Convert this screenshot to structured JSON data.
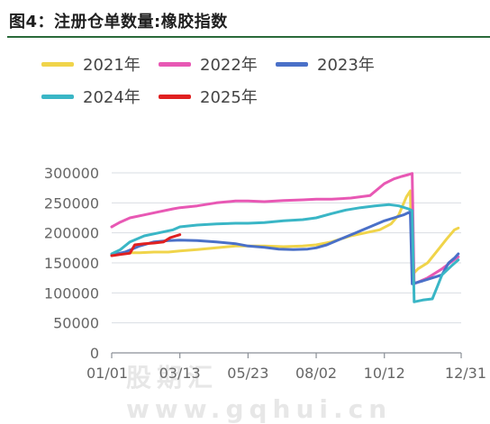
{
  "header": {
    "title": "图4：注册仓单数量:橡胶指数"
  },
  "watermark": "股期汇 www.gqhui.cn",
  "chart_data": {
    "type": "line",
    "title": "图4：注册仓单数量:橡胶指数",
    "xlabel": "",
    "ylabel": "",
    "x_ticks": [
      "01/01",
      "03/13",
      "05/23",
      "08/02",
      "10/12",
      "12/31"
    ],
    "x_tick_days": [
      1,
      72,
      143,
      214,
      285,
      365
    ],
    "y_ticks": [
      0,
      50000,
      100000,
      150000,
      200000,
      250000,
      300000
    ],
    "ylim": [
      0,
      300000
    ],
    "xlim": [
      1,
      365
    ],
    "grid": true,
    "legend_position": "top",
    "series": [
      {
        "name": "2021年",
        "color": "#f0d44a",
        "points": [
          [
            1,
            163000
          ],
          [
            10,
            165000
          ],
          [
            20,
            167000
          ],
          [
            30,
            167000
          ],
          [
            45,
            168000
          ],
          [
            60,
            168000
          ],
          [
            72,
            170000
          ],
          [
            90,
            172000
          ],
          [
            110,
            175000
          ],
          [
            130,
            178000
          ],
          [
            143,
            178000
          ],
          [
            160,
            178000
          ],
          [
            180,
            177000
          ],
          [
            200,
            178000
          ],
          [
            214,
            180000
          ],
          [
            230,
            185000
          ],
          [
            250,
            195000
          ],
          [
            265,
            200000
          ],
          [
            280,
            205000
          ],
          [
            292,
            215000
          ],
          [
            300,
            230000
          ],
          [
            308,
            260000
          ],
          [
            312,
            270000
          ],
          [
            314,
            130000
          ],
          [
            320,
            140000
          ],
          [
            330,
            150000
          ],
          [
            340,
            170000
          ],
          [
            350,
            190000
          ],
          [
            358,
            205000
          ],
          [
            362,
            208000
          ]
        ]
      },
      {
        "name": "2022年",
        "color": "#e858b4",
        "points": [
          [
            1,
            210000
          ],
          [
            10,
            218000
          ],
          [
            20,
            225000
          ],
          [
            35,
            230000
          ],
          [
            50,
            235000
          ],
          [
            65,
            240000
          ],
          [
            72,
            242000
          ],
          [
            90,
            245000
          ],
          [
            110,
            250000
          ],
          [
            130,
            253000
          ],
          [
            143,
            253000
          ],
          [
            160,
            252000
          ],
          [
            180,
            254000
          ],
          [
            200,
            255000
          ],
          [
            214,
            256000
          ],
          [
            230,
            256000
          ],
          [
            250,
            258000
          ],
          [
            270,
            262000
          ],
          [
            285,
            282000
          ],
          [
            295,
            290000
          ],
          [
            303,
            294000
          ],
          [
            310,
            297000
          ],
          [
            314,
            299000
          ],
          [
            316,
            115000
          ],
          [
            330,
            125000
          ],
          [
            345,
            140000
          ],
          [
            355,
            152000
          ],
          [
            362,
            160000
          ]
        ]
      },
      {
        "name": "2023年",
        "color": "#4a70c8",
        "points": [
          [
            1,
            163000
          ],
          [
            15,
            168000
          ],
          [
            30,
            178000
          ],
          [
            45,
            185000
          ],
          [
            60,
            187000
          ],
          [
            72,
            188000
          ],
          [
            90,
            187000
          ],
          [
            110,
            185000
          ],
          [
            130,
            182000
          ],
          [
            143,
            178000
          ],
          [
            160,
            176000
          ],
          [
            175,
            173000
          ],
          [
            190,
            172000
          ],
          [
            205,
            173000
          ],
          [
            214,
            175000
          ],
          [
            225,
            180000
          ],
          [
            240,
            190000
          ],
          [
            255,
            200000
          ],
          [
            270,
            210000
          ],
          [
            285,
            220000
          ],
          [
            295,
            225000
          ],
          [
            305,
            230000
          ],
          [
            312,
            235000
          ],
          [
            314,
            115000
          ],
          [
            325,
            120000
          ],
          [
            335,
            125000
          ],
          [
            345,
            130000
          ],
          [
            352,
            150000
          ],
          [
            358,
            158000
          ],
          [
            362,
            165000
          ]
        ]
      },
      {
        "name": "2024年",
        "color": "#3ab6c6",
        "points": [
          [
            1,
            165000
          ],
          [
            10,
            172000
          ],
          [
            20,
            185000
          ],
          [
            35,
            195000
          ],
          [
            50,
            200000
          ],
          [
            65,
            205000
          ],
          [
            72,
            210000
          ],
          [
            90,
            213000
          ],
          [
            110,
            215000
          ],
          [
            130,
            216000
          ],
          [
            143,
            216000
          ],
          [
            160,
            217000
          ],
          [
            180,
            220000
          ],
          [
            200,
            222000
          ],
          [
            214,
            225000
          ],
          [
            230,
            232000
          ],
          [
            245,
            238000
          ],
          [
            260,
            242000
          ],
          [
            275,
            245000
          ],
          [
            290,
            247000
          ],
          [
            300,
            245000
          ],
          [
            310,
            240000
          ],
          [
            314,
            237000
          ],
          [
            316,
            85000
          ],
          [
            325,
            88000
          ],
          [
            335,
            90000
          ],
          [
            340,
            110000
          ],
          [
            345,
            130000
          ],
          [
            355,
            145000
          ],
          [
            362,
            155000
          ]
        ]
      },
      {
        "name": "2025年",
        "color": "#e02020",
        "points": [
          [
            1,
            162000
          ],
          [
            10,
            164000
          ],
          [
            20,
            166000
          ],
          [
            25,
            180000
          ],
          [
            35,
            182000
          ],
          [
            45,
            183000
          ],
          [
            55,
            185000
          ],
          [
            62,
            192000
          ],
          [
            72,
            197000
          ]
        ]
      }
    ]
  }
}
